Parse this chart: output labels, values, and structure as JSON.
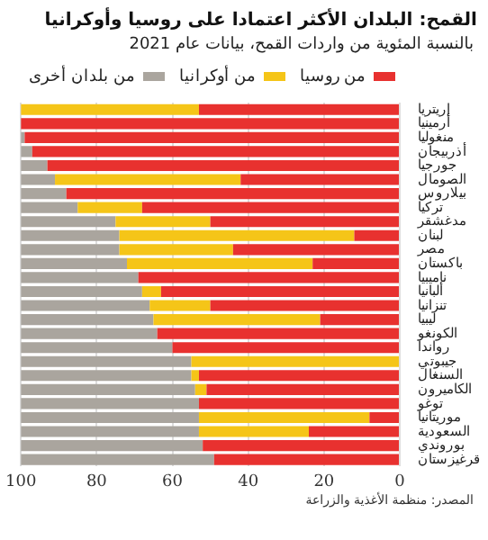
{
  "chart_data": {
    "type": "bar",
    "orientation": "horizontal",
    "stacked": true,
    "title": "القمح: البلدان الأكثر اعتمادا على روسيا وأوكرانيا",
    "subtitle": "بالنسبة المئوية من واردات القمح، بيانات عام 2021",
    "categories": [
      "إريتريا",
      "أرمينيا",
      "منغوليا",
      "أذربيجان",
      "جورجيا",
      "الصومال",
      "بيلاروس",
      "تركيا",
      "مدغشقر",
      "لبنان",
      "مصر",
      "باكستان",
      "ناميبيا",
      "ألبانيا",
      "تنزانيا",
      "ليبيا",
      "الكونغو",
      "رواندا",
      "جيبوتي",
      "السنغال",
      "الكاميرون",
      "توغو",
      "موريتانيا",
      "السعودية",
      "بوروندي",
      "قرغيزستان"
    ],
    "series": [
      {
        "name": "من روسيا",
        "color": "#e8312f",
        "values": [
          53,
          100,
          99,
          97,
          93,
          42,
          88,
          68,
          50,
          12,
          44,
          23,
          69,
          63,
          50,
          21,
          64,
          60,
          0,
          53,
          51,
          53,
          8,
          24,
          52,
          49
        ]
      },
      {
        "name": "من أوكرانيا",
        "color": "#f5c518",
        "values": [
          47,
          0,
          0,
          0,
          0,
          49,
          0,
          17,
          25,
          62,
          30,
          49,
          0,
          5,
          16,
          44,
          0,
          0,
          55,
          2,
          3,
          0,
          45,
          29,
          0,
          0
        ]
      },
      {
        "name": "من بلدان أخرى",
        "color": "#aaa59e",
        "values": [
          0,
          0,
          1,
          3,
          7,
          9,
          12,
          15,
          25,
          26,
          26,
          28,
          31,
          32,
          34,
          35,
          36,
          40,
          45,
          45,
          46,
          47,
          47,
          47,
          48,
          51
        ]
      }
    ],
    "xlim": [
      100,
      0
    ],
    "xticks": [
      100,
      80,
      60,
      40,
      20,
      0
    ],
    "grid": "x",
    "legend": "top right",
    "annotations": [
      "المصدر: منظمة الأغذية والزراعة"
    ]
  }
}
